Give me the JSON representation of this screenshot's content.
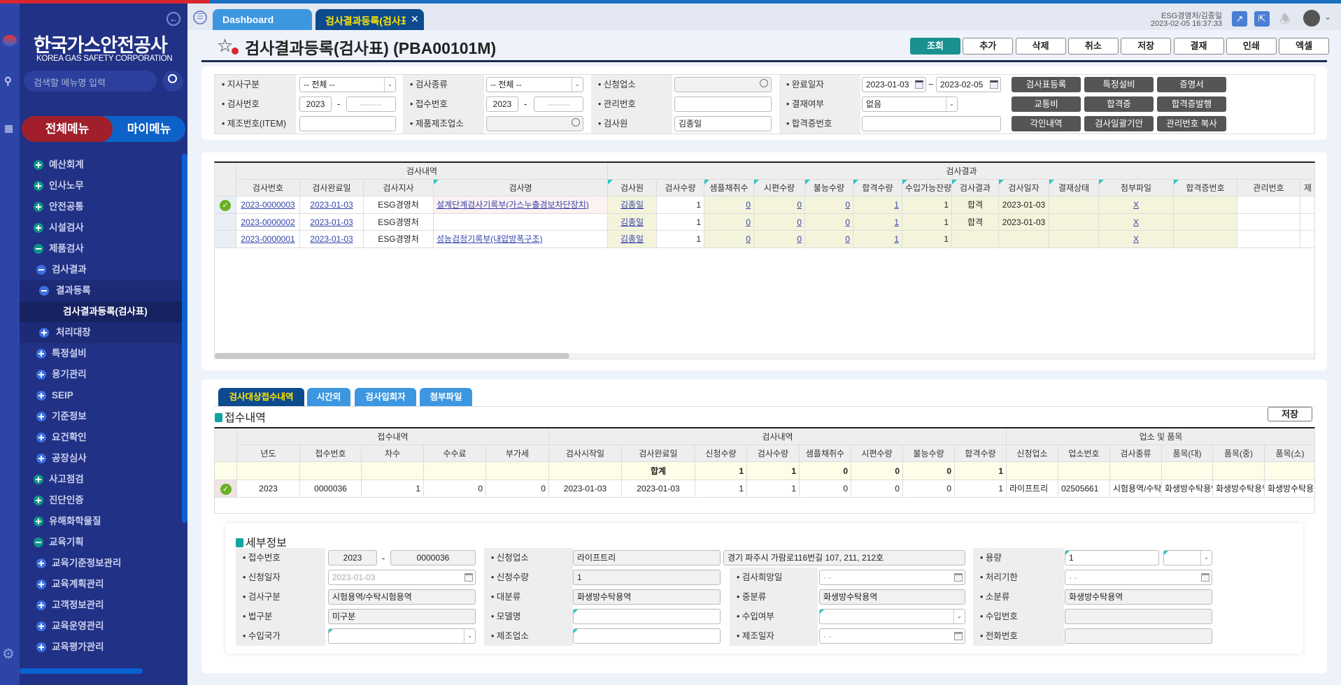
{
  "colors": {
    "sidebar_bg": "#213185",
    "rail_bg": "#2e45a8",
    "accent_teal": "#1a9090",
    "active_tab": "#0d4b8e",
    "tab": "#3d97e0",
    "menu_all": "#a01f2a",
    "menu_my": "#0d62c9"
  },
  "sidebar": {
    "logo_title": "한국가스안전공사",
    "logo_sub": "KOREA GAS SAFETY CORPORATION",
    "search_placeholder": "검색할 메뉴명 입력",
    "tab_all": "전체메뉴",
    "tab_my": "마이메뉴",
    "items": [
      {
        "label": "예산회계",
        "level": 1,
        "icon": "plus"
      },
      {
        "label": "인사노무",
        "level": 1,
        "icon": "plus"
      },
      {
        "label": "안전공통",
        "level": 1,
        "icon": "plus"
      },
      {
        "label": "시설검사",
        "level": 1,
        "icon": "plus"
      },
      {
        "label": "제품검사",
        "level": 1,
        "icon": "minus"
      },
      {
        "label": "검사결과",
        "level": 2,
        "icon": "minus"
      },
      {
        "label": "결과등록",
        "level": 3,
        "icon": "minus"
      },
      {
        "label": "검사결과등록(검사표)",
        "level": 4,
        "icon": "none",
        "active": true
      },
      {
        "label": "처리대장",
        "level": 3,
        "icon": "plus"
      },
      {
        "label": "특정설비",
        "level": 2,
        "icon": "plus"
      },
      {
        "label": "용기관리",
        "level": 2,
        "icon": "plus"
      },
      {
        "label": "SEIP",
        "level": 2,
        "icon": "plus"
      },
      {
        "label": "기준정보",
        "level": 2,
        "icon": "plus"
      },
      {
        "label": "요건확인",
        "level": 2,
        "icon": "plus"
      },
      {
        "label": "공장심사",
        "level": 2,
        "icon": "plus"
      },
      {
        "label": "사고점검",
        "level": 1,
        "icon": "plus"
      },
      {
        "label": "진단인증",
        "level": 1,
        "icon": "plus"
      },
      {
        "label": "유해화학물질",
        "level": 1,
        "icon": "plus"
      },
      {
        "label": "교육기획",
        "level": 1,
        "icon": "minus"
      },
      {
        "label": "교육기준정보관리",
        "level": 2,
        "icon": "plus"
      },
      {
        "label": "교육계획관리",
        "level": 2,
        "icon": "plus"
      },
      {
        "label": "고객정보관리",
        "level": 2,
        "icon": "plus"
      },
      {
        "label": "교육운영관리",
        "level": 2,
        "icon": "plus"
      },
      {
        "label": "교육평가관리",
        "level": 2,
        "icon": "plus"
      }
    ]
  },
  "header": {
    "tabs": [
      {
        "label": "Dashboard"
      },
      {
        "label": "검사결과등록(검사표)"
      }
    ],
    "user": "ESG경영처/김종일",
    "datetime": "2023-02-05 16:37:33"
  },
  "page": {
    "title": "검사결과등록(검사표) (PBA00101M)",
    "buttons": [
      "조회",
      "추가",
      "삭제",
      "취소",
      "저장",
      "결재",
      "인쇄",
      "엑셀"
    ]
  },
  "search": {
    "branch": {
      "label": "지사구분",
      "value": "-- 전체 --"
    },
    "insp_no": {
      "label": "검사번호",
      "year": "2023",
      "placeholder": "--------"
    },
    "item_no": {
      "label": "제조번호(ITEM)",
      "value": ""
    },
    "insp_type": {
      "label": "검사종류",
      "value": "-- 전체 --"
    },
    "recv_no": {
      "label": "접수번호",
      "year": "2023",
      "placeholder": "--------"
    },
    "maker": {
      "label": "제품제조업소",
      "value": ""
    },
    "applicant": {
      "label": "신청업소",
      "value": ""
    },
    "mgmt_no": {
      "label": "관리번호",
      "value": ""
    },
    "inspector": {
      "label": "검사원",
      "value": "김종일"
    },
    "done_date": {
      "label": "완료일자",
      "from": "2023-01-03",
      "to": "2023-02-05",
      "sep": "~"
    },
    "approval": {
      "label": "결재여부",
      "value": "없음"
    },
    "cert_no": {
      "label": "합격증번호",
      "value": ""
    },
    "action_buttons": [
      "검사표등록",
      "특정설비",
      "증명서",
      "교통비",
      "합격증",
      "합격증발행",
      "각인내역",
      "검사일괄기안",
      "관리번호 복사"
    ]
  },
  "result_grid": {
    "groups": [
      "검사내역",
      "검사결과"
    ],
    "columns": [
      "검사번호",
      "검사완료일",
      "검사지사",
      "검사명",
      "검사원",
      "검사수량",
      "샘플채취수",
      "시편수량",
      "불능수량",
      "합격수량",
      "수입가능잔량",
      "검사결과",
      "검사일자",
      "결재상태",
      "첨부파일",
      "합격증번호",
      "관리번호",
      "제"
    ],
    "rows": [
      {
        "selected": true,
        "cells": [
          "2023-0000003",
          "2023-01-03",
          "ESG경영처",
          "설계단계검사기록부(가스누출경보차단장치)",
          "김종일",
          "1",
          "0",
          "0",
          "0",
          "1",
          "1",
          "합격",
          "2023-01-03",
          "",
          "X",
          "",
          "",
          ""
        ]
      },
      {
        "selected": false,
        "cells": [
          "2023-0000002",
          "2023-01-03",
          "ESG경영처",
          "",
          "김종일",
          "1",
          "0",
          "0",
          "0",
          "1",
          "1",
          "합격",
          "2023-01-03",
          "",
          "X",
          "",
          "",
          ""
        ]
      },
      {
        "selected": false,
        "cells": [
          "2023-0000001",
          "2023-01-03",
          "ESG경영처",
          "성능검정기록부(내압방폭구조)",
          "김종일",
          "1",
          "0",
          "0",
          "0",
          "1",
          "1",
          "",
          "",
          "",
          "X",
          "",
          "",
          ""
        ]
      }
    ]
  },
  "bottom": {
    "tabs": [
      "검사대상접수내역",
      "시간외",
      "검사입회자",
      "첨부파일"
    ],
    "section_title": "접수내역",
    "save_label": "저장",
    "grid": {
      "groups": [
        "접수내역",
        "검사내역",
        "업소 및 품목"
      ],
      "columns": [
        "년도",
        "접수번호",
        "차수",
        "수수료",
        "부가세",
        "검사시작일",
        "검사완료일",
        "신청수량",
        "검사수량",
        "샘플채취수",
        "시편수량",
        "불능수량",
        "합격수량",
        "신청업소",
        "업소번호",
        "검사종류",
        "품목(대)",
        "품목(중)",
        "품목(소)"
      ],
      "sum_row": [
        "",
        "",
        "",
        "",
        "",
        "",
        "합계",
        "1",
        "1",
        "0",
        "0",
        "0",
        "1",
        "",
        "",
        "",
        "",
        "",
        ""
      ],
      "rows": [
        {
          "selected": true,
          "cells": [
            "2023",
            "0000036",
            "1",
            "0",
            "0",
            "2023-01-03",
            "2023-01-03",
            "1",
            "1",
            "0",
            "0",
            "0",
            "1",
            "라이프트리",
            "02505661",
            "시험용역/수탁시험용역",
            "화생방수탁용역",
            "화생방수탁용역",
            "화생방수탁용역"
          ]
        }
      ]
    },
    "detail": {
      "title": "세부정보",
      "recv_no": {
        "label": "접수번호",
        "year": "2023",
        "no": "0000036"
      },
      "apply_date": {
        "label": "신청일자",
        "value": "2023-01-03"
      },
      "insp_class": {
        "label": "검사구분",
        "value": "시험용역/수탁시험용역"
      },
      "law_class": {
        "label": "법구분",
        "value": "미구분"
      },
      "import_country": {
        "label": "수입국가",
        "value": ""
      },
      "applicant": {
        "label": "신청업소",
        "value": "라이프트리",
        "address": "경기 파주시 가람로116번길 107, 211, 212호"
      },
      "apply_qty": {
        "label": "신청수량",
        "value": "1"
      },
      "major": {
        "label": "대분류",
        "value": "화생방수탁용역"
      },
      "model": {
        "label": "모델명",
        "value": ""
      },
      "maker": {
        "label": "제조업소",
        "value": ""
      },
      "hope_date": {
        "label": "검사희망일",
        "value": "-  -"
      },
      "middle": {
        "label": "중분류",
        "value": "화생방수탁용역"
      },
      "import_yn": {
        "label": "수입여부",
        "value": ""
      },
      "make_date": {
        "label": "제조일자",
        "value": "-  -"
      },
      "capacity": {
        "label": "용량",
        "value": "1",
        "unit": ""
      },
      "deadline": {
        "label": "처리기한",
        "value": "-  -"
      },
      "minor": {
        "label": "소분류",
        "value": "화생방수탁용역"
      },
      "import_no": {
        "label": "수입번호",
        "value": ""
      },
      "phone": {
        "label": "전화번호",
        "value": ""
      }
    }
  }
}
